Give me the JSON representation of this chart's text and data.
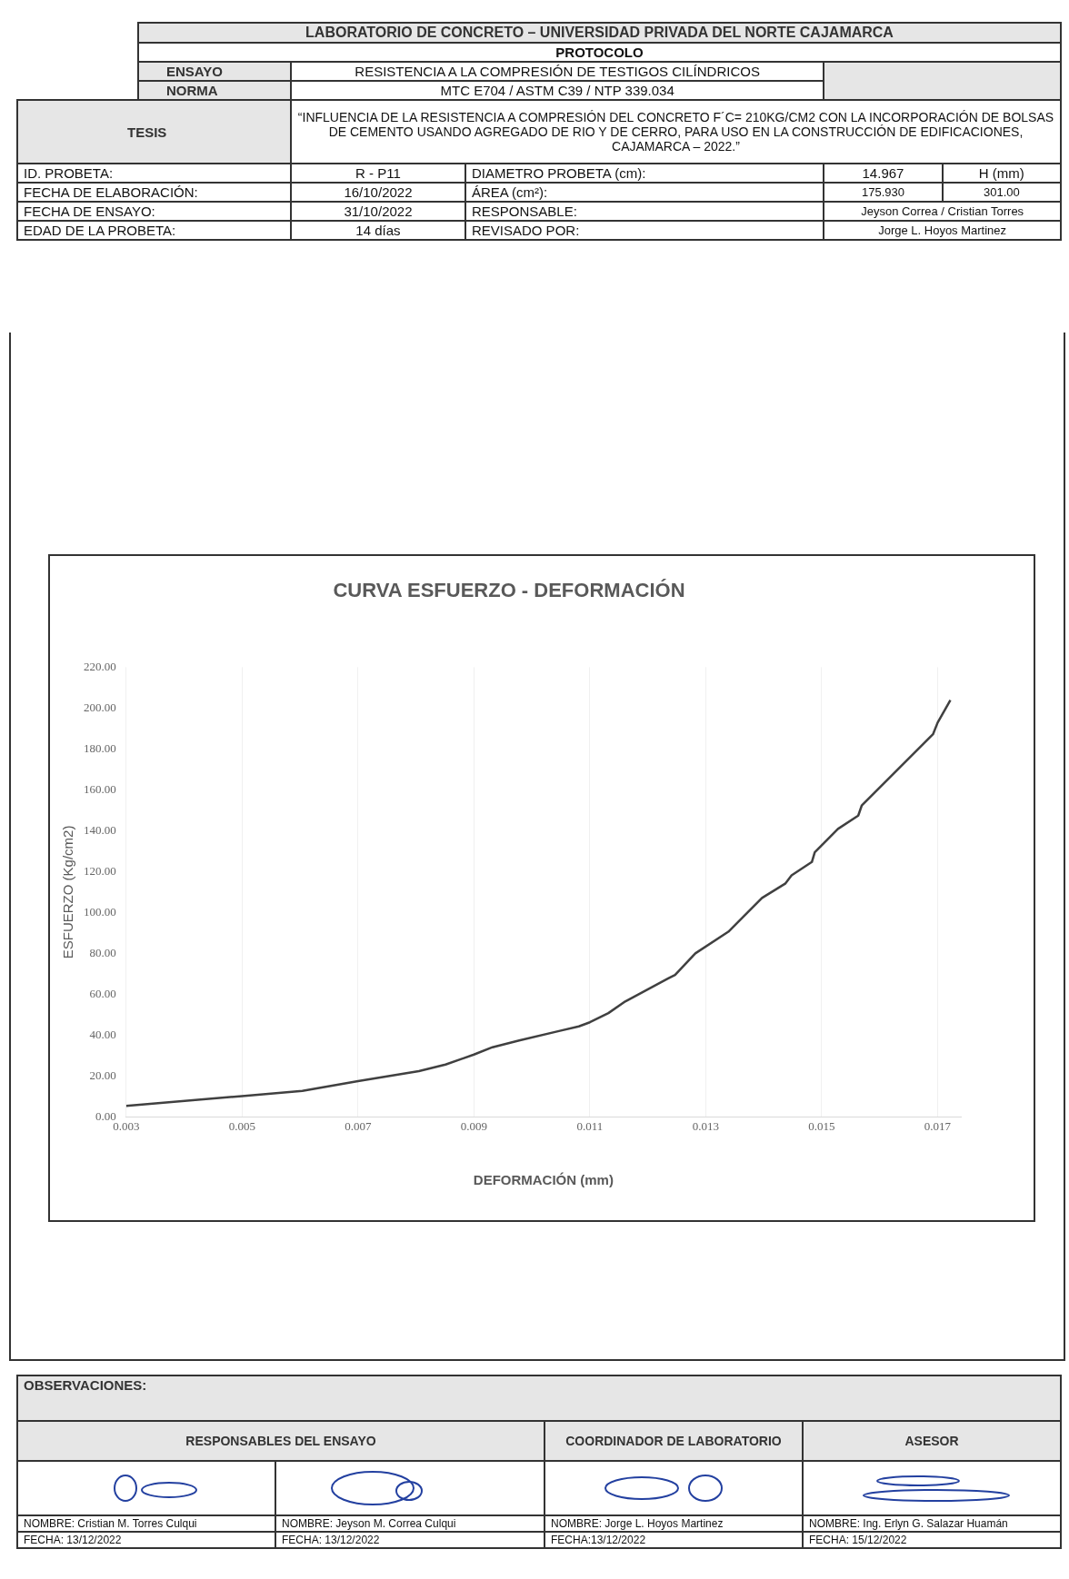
{
  "chart_data": {
    "type": "line",
    "title": "CURVA ESFUERZO - DEFORMACIÓN",
    "xlabel": "DEFORMACIÓN (mm)",
    "ylabel": "ESFUERZO (Kg/cm2)",
    "x": [
      0.003,
      0.005,
      0.00604,
      0.007,
      0.00805,
      0.00851,
      0.009,
      0.00932,
      0.00978,
      0.01045,
      0.01081,
      0.011,
      0.01132,
      0.01161,
      0.01236,
      0.01247,
      0.01282,
      0.01339,
      0.01397,
      0.01437,
      0.01448,
      0.01483,
      0.01488,
      0.01528,
      0.01563,
      0.01569,
      0.01692,
      0.017,
      0.01722
    ],
    "series": [
      {
        "color": "#404040",
        "values": [
          5.4,
          10.2,
          12.7,
          17.5,
          22.4,
          25.6,
          30.5,
          34.1,
          37.4,
          41.9,
          44.3,
          46.3,
          50.8,
          56.5,
          67.9,
          69.5,
          80.0,
          90.6,
          107.1,
          114.1,
          118.2,
          124.7,
          129.5,
          140.9,
          147.4,
          152.3,
          187.2,
          192.9,
          203.9
        ]
      }
    ],
    "xlim": [
      0.003,
      0.0174
    ],
    "xticks": [
      0.003,
      0.005,
      0.007,
      0.009,
      0.011,
      0.013,
      0.015,
      0.017
    ],
    "ylim": [
      0,
      220
    ],
    "yticks": [
      {
        "value": 0,
        "label": "0.00"
      },
      {
        "value": 20,
        "label": "20.00"
      },
      {
        "value": 40,
        "label": "40.00"
      },
      {
        "value": 60,
        "label": "60.00"
      },
      {
        "value": 80,
        "label": "80.00"
      },
      {
        "value": 100,
        "label": "100.00"
      },
      {
        "value": 120,
        "label": "120.00"
      },
      {
        "value": 140,
        "label": "140.00"
      },
      {
        "value": 160,
        "label": "160.00"
      },
      {
        "value": 180,
        "label": "180.00"
      },
      {
        "value": 200,
        "label": "200.00"
      },
      {
        "value": 220,
        "label": "220.00"
      }
    ],
    "grid": "x",
    "legend": false,
    "marker": "none",
    "line_style": "solid",
    "annotations": [
      "LABORATORIO DE CONCRETO – UNIVERSIDAD PRIVADA DEL NORTE CAJAMARCA",
      "PROTOCOLO",
      "ENSAYO",
      "RESISTENCIA A LA COMPRESIÓN DE TESTIGOS CILÍNDRICOS",
      "NORMA",
      "MTC E704 / ASTM C39 / NTP 339.034",
      "TESIS",
      "“INFLUENCIA DE LA RESISTENCIA A COMPRESIÓN DEL CONCRETO F´C= 210KG/CM2 CON LA INCORPORACIÓN DE BOLSAS DE CEMENTO USANDO AGREGADO DE RIO Y DE CERRO, PARA USO EN LA CONSTRUCCIÓN DE EDIFICACIONES, CAJAMARCA – 2022.”",
      "ID. PROBETA:",
      "R - P11",
      "DIAMETRO PROBETA (cm):",
      "14.967",
      "H (mm)",
      "FECHA DE ELABORACIÓN:",
      "16/10/2022",
      "ÁREA (cm²):",
      "175.930",
      "301.00",
      "FECHA DE ENSAYO:",
      "31/10/2022",
      "RESPONSABLE:",
      "Jeyson Correa / Cristian Torres",
      "EDAD DE LA PROBETA:",
      "14 días",
      "REVISADO POR:",
      "Jorge L. Hoyos Martinez",
      "OBSERVACIONES:",
      "RESPONSABLES DEL ENSAYO",
      "COORDINADOR DE LABORATORIO",
      "ASESOR",
      "NOMBRE: Cristian M. Torres Culqui",
      "NOMBRE: Jeyson M. Correa Culqui",
      "NOMBRE: Jorge L. Hoyos Martinez",
      "NOMBRE: Ing. Erlyn G. Salazar Huamán",
      "FECHA: 13/12/2022",
      "FECHA: 13/12/2022",
      "FECHA:13/12/2022",
      "FECHA: 15/12/2022"
    ]
  }
}
